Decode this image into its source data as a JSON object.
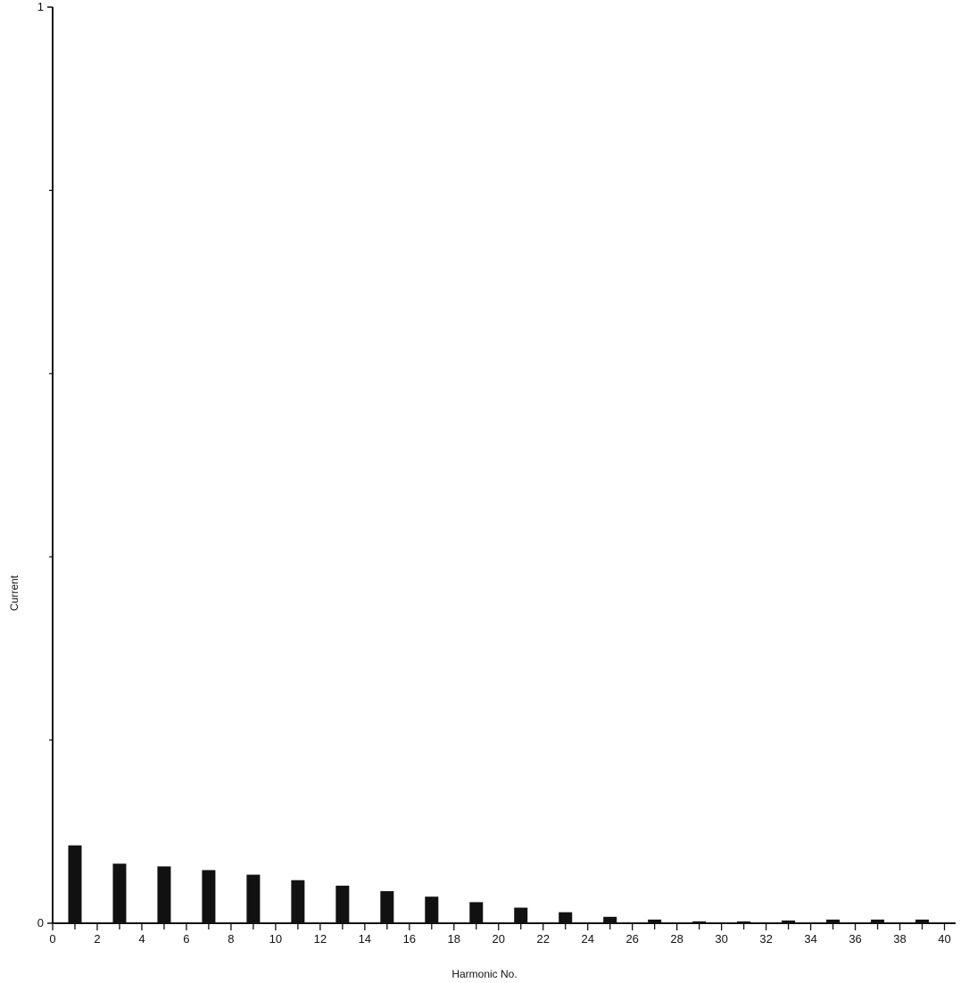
{
  "chart_data": {
    "type": "bar",
    "title": "",
    "xlabel": "Harmonic No.",
    "ylabel": "Current",
    "xlim": [
      0,
      40.5
    ],
    "ylim": [
      0,
      1
    ],
    "x_ticks": [
      "0",
      "2",
      "4",
      "6",
      "8",
      "10",
      "12",
      "14",
      "16",
      "18",
      "20",
      "22",
      "24",
      "26",
      "28",
      "30",
      "32",
      "34",
      "36",
      "38",
      "40"
    ],
    "y_tick_labels": [
      {
        "value": 0,
        "label": "0"
      },
      {
        "value": 1,
        "label": "1"
      }
    ],
    "y_minor_ticks": [
      0.2,
      0.4,
      0.6,
      0.8
    ],
    "x": [
      1,
      3,
      5,
      7,
      9,
      11,
      13,
      15,
      17,
      19,
      21,
      23,
      25,
      27,
      29,
      31,
      33,
      35,
      37,
      39
    ],
    "values": [
      0.085,
      0.065,
      0.062,
      0.058,
      0.053,
      0.047,
      0.041,
      0.035,
      0.029,
      0.023,
      0.017,
      0.012,
      0.007,
      0.004,
      0.002,
      0.002,
      0.003,
      0.004,
      0.004,
      0.004
    ],
    "bar_color": "#111111",
    "grid": false,
    "legend": "none"
  }
}
